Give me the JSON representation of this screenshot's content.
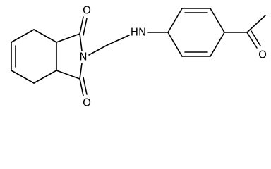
{
  "atoms": {
    "o_top": "O",
    "n_imide": "N",
    "o_bottom": "O",
    "nh": "HN",
    "o_acetyl": "O"
  }
}
